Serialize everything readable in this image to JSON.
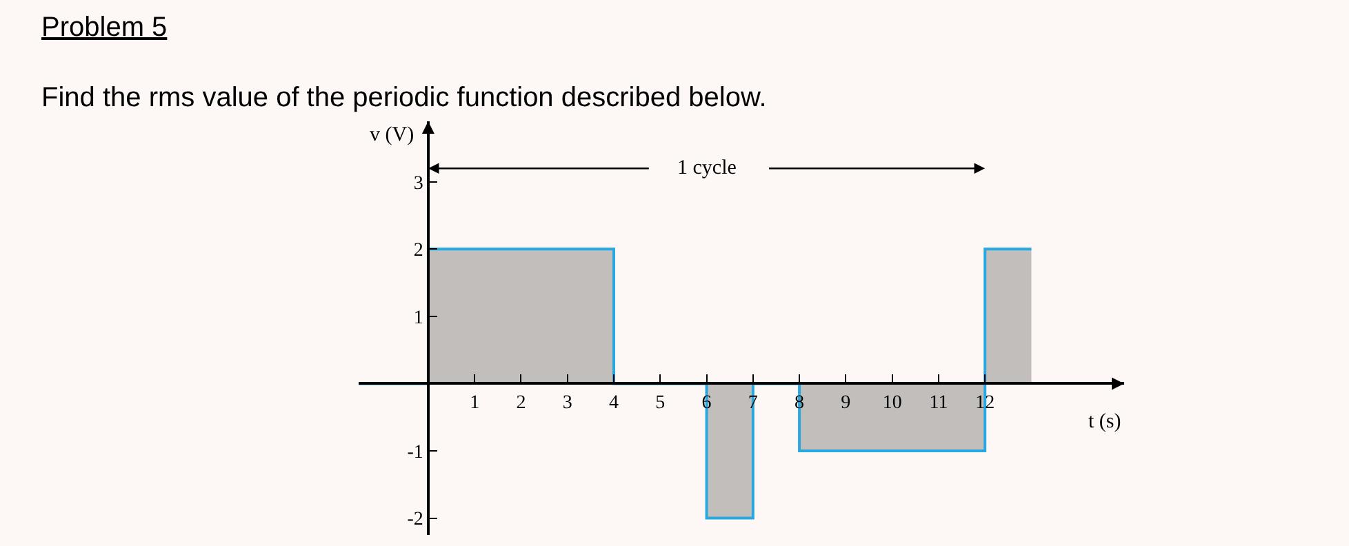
{
  "chart_data": {
    "type": "step",
    "title": "Problem 5",
    "subtitle": "Find the rms value of the periodic function described below.",
    "xlabel": "t (s)",
    "ylabel": "v (V)",
    "x": [
      -1.5,
      0,
      4,
      6,
      7,
      8,
      12,
      13
    ],
    "series": [
      {
        "color": "#29a8e0",
        "values": [
          0,
          2,
          0,
          -2,
          0,
          -1,
          2,
          2
        ]
      }
    ],
    "annotations": [
      "1 cycle"
    ],
    "xlim": [
      -1.5,
      15
    ],
    "ylim": [
      -2.25,
      3.9
    ],
    "xticks": [
      1,
      2,
      3,
      4,
      5,
      6,
      7,
      8,
      9,
      10,
      11,
      12
    ],
    "yticks": [
      -2,
      -1,
      1,
      2,
      3
    ],
    "grid": false,
    "legend": false
  }
}
